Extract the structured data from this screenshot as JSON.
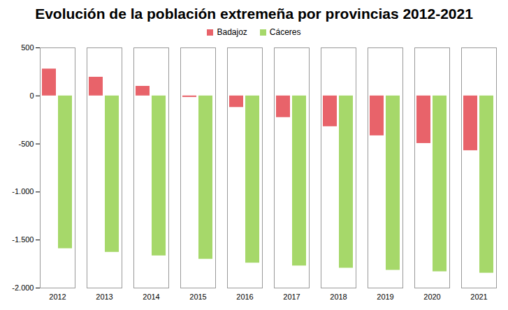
{
  "chart_data": {
    "type": "bar",
    "title": "Evolución de la población extremeña por provincias 2012-2021",
    "categories": [
      "2012",
      "2013",
      "2014",
      "2015",
      "2016",
      "2017",
      "2018",
      "2019",
      "2020",
      "2021"
    ],
    "series": [
      {
        "name": "Badajoz",
        "color": "#e8636a",
        "values": [
          280,
          195,
          100,
          -15,
          -120,
          -225,
          -320,
          -415,
          -495,
          -570
        ]
      },
      {
        "name": "Cáceres",
        "color": "#a6d86a",
        "values": [
          -1590,
          -1628,
          -1665,
          -1700,
          -1740,
          -1770,
          -1793,
          -1815,
          -1830,
          -1845
        ]
      }
    ],
    "ylim": [
      -2000,
      500
    ],
    "yticks": [
      500,
      0,
      -500,
      {
        "value": -1000,
        "label": "-1.000"
      },
      {
        "value": -1500,
        "label": "-1.500"
      },
      {
        "value": -2000,
        "label": "-2.000"
      }
    ],
    "grid": false,
    "legend": "top"
  }
}
